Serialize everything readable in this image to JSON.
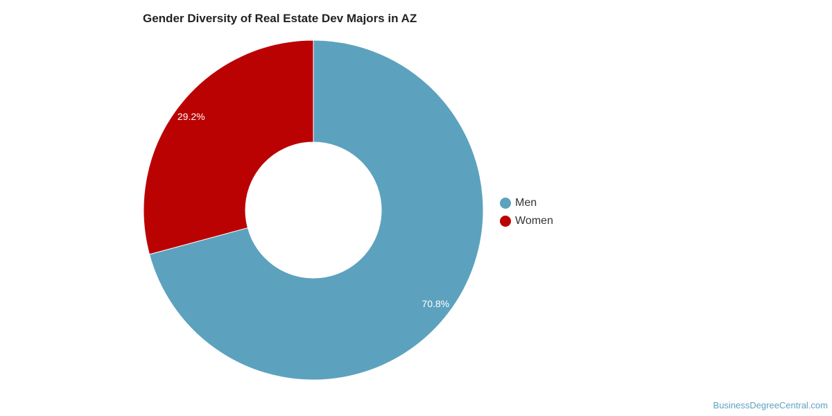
{
  "chart_data": {
    "type": "pie",
    "title": "Gender Diversity of Real Estate Dev Majors in AZ",
    "donut": true,
    "legend_position": "right",
    "categories": [
      "Men",
      "Women"
    ],
    "values": [
      70.8,
      29.2
    ],
    "labels": [
      "70.8%",
      "29.2%"
    ],
    "colors": [
      "#5ca2be",
      "#bb0202"
    ]
  },
  "legend": {
    "items": [
      {
        "label": "Men",
        "color": "#5ca2be"
      },
      {
        "label": "Women",
        "color": "#bb0202"
      }
    ]
  },
  "credit": "BusinessDegreeCentral.com"
}
